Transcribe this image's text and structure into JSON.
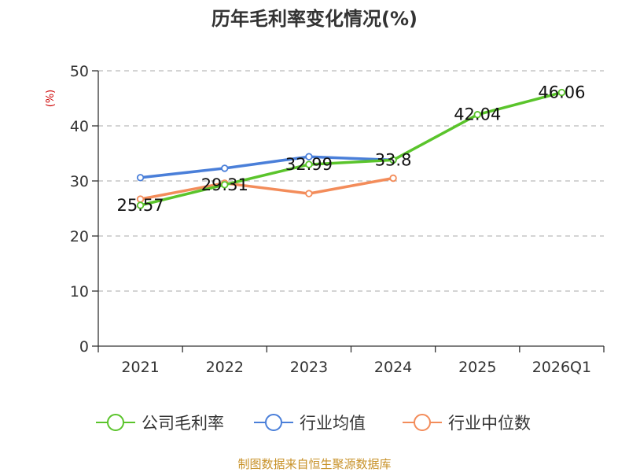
{
  "chart_data": {
    "type": "line",
    "title": "历年毛利率变化情况(%)",
    "ylabel": "(%)",
    "categories": [
      "2021",
      "2022",
      "2023",
      "2024",
      "2025",
      "2026Q1"
    ],
    "ylim": [
      0,
      50
    ],
    "yticks": [
      "0",
      "10",
      "20",
      "30",
      "40",
      "50"
    ],
    "grid": true,
    "legend_position": "bottom",
    "series": [
      {
        "name": "公司毛利率",
        "color": "#5ac42b",
        "values": [
          25.57,
          29.31,
          32.99,
          33.8,
          42.04,
          46.06
        ],
        "labels": [
          "25.57",
          "29.31",
          "32.99",
          "33.8",
          "42.04",
          "46.06"
        ]
      },
      {
        "name": "行业均值",
        "color": "#4a7fd9",
        "values": [
          30.6,
          32.3,
          34.4,
          33.8,
          null,
          null
        ]
      },
      {
        "name": "行业中位数",
        "color": "#f38c5a",
        "values": [
          26.7,
          29.6,
          27.7,
          30.5,
          null,
          null
        ]
      }
    ],
    "source": "制图数据来自恒生聚源数据库",
    "source_color": "#c8922a",
    "unit_color": "#cc0000"
  }
}
